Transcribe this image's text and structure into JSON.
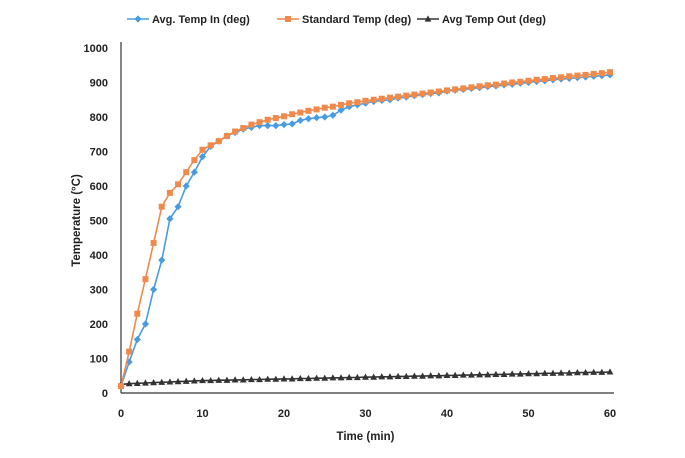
{
  "chart_data": {
    "type": "line",
    "title": "",
    "xlabel": "Time (min)",
    "ylabel": "Temperature (°C)",
    "xlim": [
      0,
      60
    ],
    "ylim": [
      0,
      1000
    ],
    "x_ticks": [
      0,
      10,
      20,
      30,
      40,
      50,
      60
    ],
    "y_ticks": [
      0,
      100,
      200,
      300,
      400,
      500,
      600,
      700,
      800,
      900,
      1000
    ],
    "grid": false,
    "legend_position": "top",
    "series": [
      {
        "name": "Avg. Temp  In (deg)",
        "color": "#4a9be0",
        "marker": "diamond",
        "x": [
          0,
          1,
          2,
          3,
          4,
          5,
          6,
          7,
          8,
          9,
          10,
          11,
          12,
          13,
          14,
          15,
          16,
          17,
          18,
          19,
          20,
          21,
          22,
          23,
          24,
          25,
          26,
          27,
          28,
          29,
          30,
          31,
          32,
          33,
          34,
          35,
          36,
          37,
          38,
          39,
          40,
          41,
          42,
          43,
          44,
          45,
          46,
          47,
          48,
          49,
          50,
          51,
          52,
          53,
          54,
          55,
          56,
          57,
          58,
          59,
          60
        ],
        "y": [
          20,
          90,
          155,
          200,
          300,
          385,
          505,
          540,
          600,
          640,
          685,
          715,
          730,
          745,
          755,
          765,
          770,
          775,
          775,
          775,
          778,
          780,
          790,
          795,
          798,
          800,
          805,
          820,
          830,
          835,
          840,
          845,
          848,
          850,
          855,
          858,
          862,
          865,
          868,
          870,
          875,
          878,
          880,
          883,
          885,
          888,
          890,
          893,
          895,
          898,
          900,
          903,
          905,
          908,
          910,
          912,
          914,
          916,
          918,
          920,
          922
        ]
      },
      {
        "name": "Standard Temp (deg)",
        "color": "#ef8a4c",
        "marker": "square",
        "x": [
          0,
          1,
          2,
          3,
          4,
          5,
          6,
          7,
          8,
          9,
          10,
          11,
          12,
          13,
          14,
          15,
          16,
          17,
          18,
          19,
          20,
          21,
          22,
          23,
          24,
          25,
          26,
          27,
          28,
          29,
          30,
          31,
          32,
          33,
          34,
          35,
          36,
          37,
          38,
          39,
          40,
          41,
          42,
          43,
          44,
          45,
          46,
          47,
          48,
          49,
          50,
          51,
          52,
          53,
          54,
          55,
          56,
          57,
          58,
          59,
          60
        ],
        "y": [
          20,
          120,
          230,
          330,
          435,
          540,
          580,
          605,
          640,
          675,
          705,
          718,
          730,
          745,
          758,
          768,
          778,
          785,
          792,
          797,
          802,
          808,
          813,
          818,
          822,
          827,
          830,
          835,
          840,
          843,
          847,
          850,
          853,
          856,
          859,
          862,
          865,
          868,
          871,
          874,
          877,
          880,
          883,
          886,
          889,
          892,
          894,
          897,
          900,
          902,
          905,
          908,
          910,
          913,
          915,
          918,
          920,
          922,
          925,
          927,
          930
        ]
      },
      {
        "name": "Avg Temp Out  (deg)",
        "color": "#333333",
        "marker": "triangle",
        "x": [
          0,
          1,
          2,
          3,
          4,
          5,
          6,
          7,
          8,
          9,
          10,
          11,
          12,
          13,
          14,
          15,
          16,
          17,
          18,
          19,
          20,
          21,
          22,
          23,
          24,
          25,
          26,
          27,
          28,
          29,
          30,
          31,
          32,
          33,
          34,
          35,
          36,
          37,
          38,
          39,
          40,
          41,
          42,
          43,
          44,
          45,
          46,
          47,
          48,
          49,
          50,
          51,
          52,
          53,
          54,
          55,
          56,
          57,
          58,
          59,
          60
        ],
        "y": [
          25,
          27,
          28,
          29,
          30,
          31,
          32,
          33,
          34,
          35,
          36,
          36,
          37,
          37,
          38,
          38,
          39,
          39,
          40,
          40,
          41,
          41,
          42,
          42,
          43,
          43,
          44,
          44,
          45,
          45,
          46,
          46,
          47,
          47,
          48,
          48,
          49,
          49,
          50,
          50,
          51,
          51,
          52,
          52,
          53,
          53,
          54,
          54,
          55,
          55,
          56,
          56,
          57,
          57,
          58,
          58,
          59,
          59,
          60,
          60,
          61
        ]
      }
    ]
  }
}
